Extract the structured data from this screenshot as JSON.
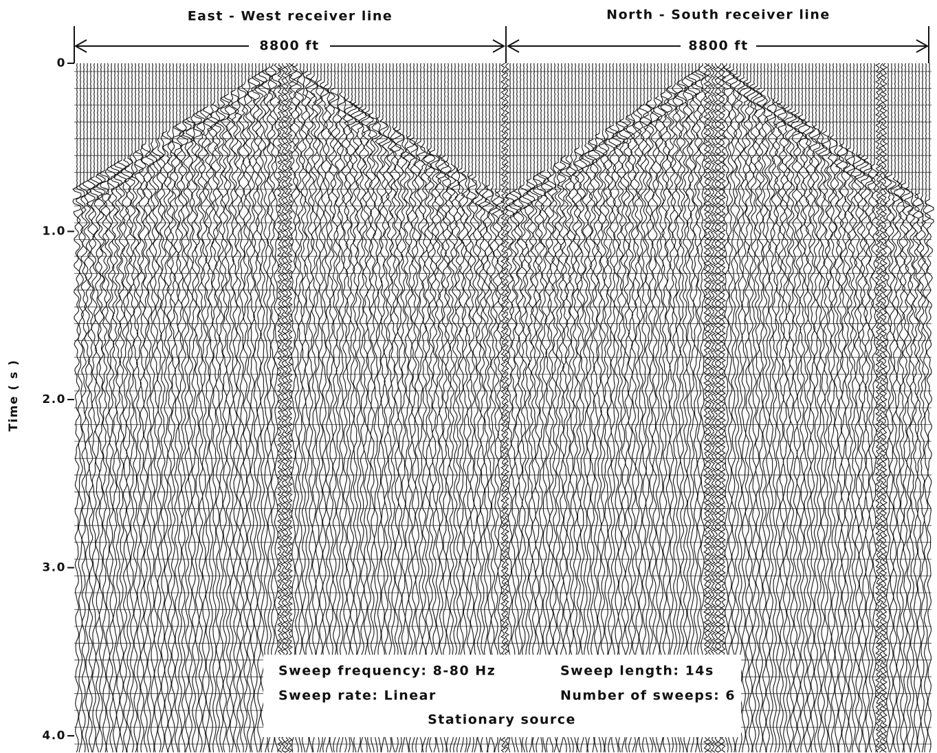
{
  "header": {
    "left_title": "East - West receiver line",
    "right_title": "North - South receiver line"
  },
  "scale": {
    "left": "8800 ft",
    "right": "8800 ft"
  },
  "axis": {
    "label": "Time ( s )",
    "ticks": [
      "0",
      "1.0",
      "2.0",
      "3.0",
      "4.0"
    ]
  },
  "legend": {
    "sweep_frequency": "Sweep frequency: 8-80 Hz",
    "sweep_length": "Sweep length: 14s",
    "sweep_rate": "Sweep rate: Linear",
    "number_of_sweeps": "Number of sweeps: 6",
    "source": "Stationary source"
  }
}
